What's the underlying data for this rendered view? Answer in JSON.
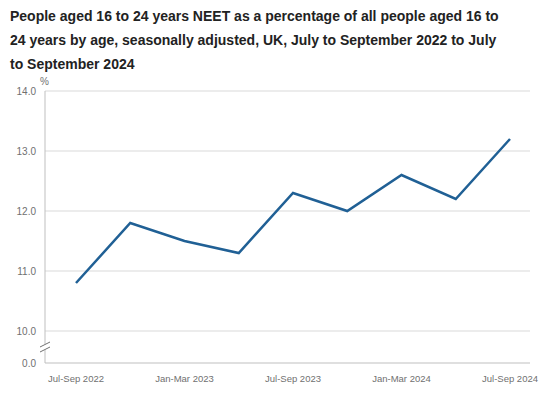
{
  "chart_data": {
    "type": "line",
    "title": "People aged 16 to 24 years NEET as a percentage of all people aged 16 to 24 years by age, seasonally adjusted, UK, July to September 2022 to July to September 2024",
    "ylabel": "%",
    "categories": [
      "Jul-Sep 2022",
      null,
      "Jan-Mar 2023",
      null,
      "Jul-Sep 2023",
      null,
      "Jan-Mar 2024",
      null,
      "Jul-Sep 2024"
    ],
    "values": [
      10.8,
      11.8,
      11.5,
      11.3,
      12.3,
      12.0,
      12.6,
      12.2,
      13.2
    ],
    "color": "#206095",
    "ylim": [
      0,
      14
    ],
    "yticks": [
      {
        "value": 0,
        "label": "0.0"
      },
      {
        "value": 10,
        "label": "10.0"
      },
      {
        "value": 11,
        "label": "11.0"
      },
      {
        "value": 12,
        "label": "12.0"
      },
      {
        "value": 13,
        "label": "13.0"
      },
      {
        "value": 14,
        "label": "14.0"
      }
    ],
    "grid": true
  }
}
